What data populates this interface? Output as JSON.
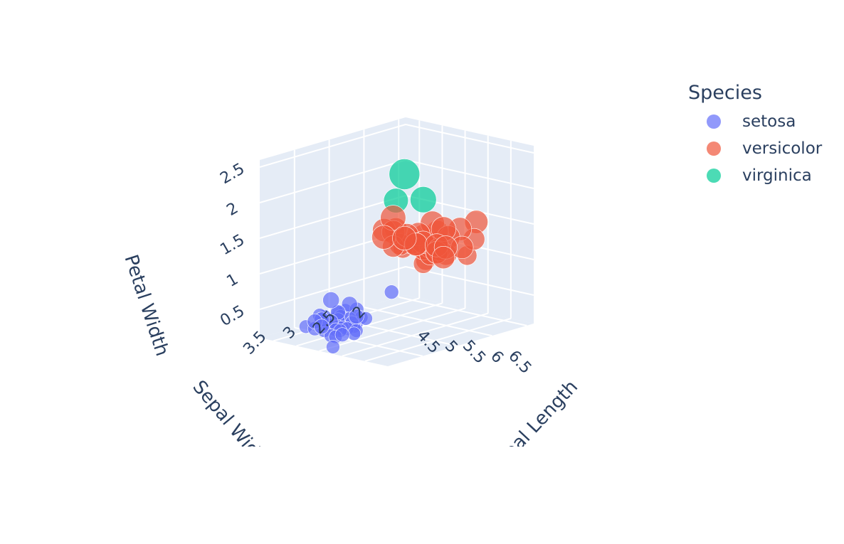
{
  "chart_data": {
    "type": "scatter3d",
    "x_axis": {
      "label": "Sepal Length",
      "ticks": [
        "4.5",
        "5",
        "5.5",
        "6",
        "6.5"
      ],
      "range": [
        4.2,
        7.0
      ]
    },
    "y_axis": {
      "label": "Sepal Width",
      "ticks": [
        "2",
        "2.5",
        "3",
        "3.5"
      ],
      "range": [
        1.9,
        4.0
      ]
    },
    "z_axis": {
      "label": "Petal Width",
      "ticks": [
        "0.5",
        "1",
        "1.5",
        "2",
        "2.5"
      ],
      "range": [
        0.1,
        2.6
      ]
    },
    "legend": {
      "title": "Species",
      "placement": "right"
    },
    "series": [
      {
        "name": "setosa",
        "color": "#636efa",
        "points": [
          [
            5.1,
            3.5,
            0.2
          ],
          [
            4.9,
            3.0,
            0.2
          ],
          [
            4.7,
            3.2,
            0.2
          ],
          [
            4.6,
            3.1,
            0.2
          ],
          [
            5.0,
            3.6,
            0.2
          ],
          [
            5.4,
            3.9,
            0.4
          ],
          [
            4.6,
            3.4,
            0.3
          ],
          [
            5.0,
            3.4,
            0.2
          ],
          [
            4.4,
            2.9,
            0.2
          ],
          [
            4.9,
            3.1,
            0.1
          ],
          [
            5.4,
            3.7,
            0.2
          ],
          [
            4.8,
            3.4,
            0.2
          ],
          [
            4.8,
            3.0,
            0.1
          ],
          [
            4.3,
            3.0,
            0.1
          ],
          [
            5.8,
            4.0,
            0.2
          ],
          [
            5.7,
            3.8,
            0.3
          ],
          [
            5.1,
            3.8,
            0.3
          ],
          [
            5.4,
            3.4,
            0.2
          ],
          [
            5.1,
            3.7,
            0.4
          ],
          [
            4.6,
            3.6,
            0.2
          ],
          [
            5.1,
            3.3,
            0.5
          ],
          [
            4.8,
            3.4,
            0.2
          ],
          [
            5.0,
            3.0,
            0.2
          ],
          [
            5.0,
            3.4,
            0.4
          ],
          [
            5.2,
            3.5,
            0.2
          ],
          [
            5.2,
            3.4,
            0.2
          ],
          [
            4.7,
            3.2,
            0.2
          ],
          [
            4.8,
            3.1,
            0.2
          ],
          [
            5.4,
            3.4,
            0.4
          ],
          [
            5.0,
            3.2,
            0.2
          ],
          [
            5.5,
            3.5,
            0.2
          ],
          [
            4.4,
            3.0,
            0.2
          ],
          [
            5.1,
            3.4,
            0.2
          ],
          [
            5.0,
            3.5,
            0.3
          ],
          [
            4.5,
            2.3,
            0.3
          ],
          [
            4.4,
            3.2,
            0.2
          ],
          [
            5.0,
            3.5,
            0.6
          ],
          [
            5.1,
            3.8,
            0.4
          ],
          [
            4.8,
            3.0,
            0.3
          ],
          [
            5.3,
            3.7,
            0.2
          ]
        ]
      },
      {
        "name": "versicolor",
        "color": "#ef553b",
        "points": [
          [
            7.0,
            3.2,
            1.4
          ],
          [
            6.4,
            3.2,
            1.5
          ],
          [
            6.9,
            3.1,
            1.5
          ],
          [
            5.5,
            2.3,
            1.3
          ],
          [
            6.5,
            2.8,
            1.5
          ],
          [
            5.7,
            2.8,
            1.3
          ],
          [
            6.3,
            3.3,
            1.6
          ],
          [
            4.9,
            2.4,
            1.0
          ],
          [
            6.6,
            2.9,
            1.3
          ],
          [
            5.2,
            2.7,
            1.4
          ],
          [
            5.0,
            2.0,
            1.0
          ],
          [
            5.9,
            3.0,
            1.5
          ],
          [
            6.0,
            2.2,
            1.0
          ],
          [
            6.1,
            2.9,
            1.4
          ],
          [
            5.6,
            2.9,
            1.3
          ],
          [
            6.7,
            3.1,
            1.4
          ],
          [
            5.6,
            3.0,
            1.5
          ],
          [
            5.8,
            2.7,
            1.0
          ],
          [
            6.2,
            2.2,
            1.5
          ],
          [
            5.6,
            2.5,
            1.1
          ],
          [
            5.9,
            3.2,
            1.8
          ],
          [
            6.1,
            2.8,
            1.3
          ],
          [
            6.3,
            2.5,
            1.5
          ],
          [
            6.1,
            2.8,
            1.2
          ],
          [
            6.4,
            2.9,
            1.3
          ],
          [
            6.6,
            3.0,
            1.4
          ],
          [
            6.8,
            2.8,
            1.4
          ],
          [
            6.7,
            3.0,
            1.7
          ],
          [
            6.0,
            2.9,
            1.5
          ],
          [
            5.7,
            2.6,
            1.0
          ],
          [
            5.5,
            2.4,
            1.1
          ],
          [
            5.8,
            2.7,
            1.2
          ],
          [
            6.0,
            2.7,
            1.6
          ],
          [
            5.4,
            3.0,
            1.5
          ],
          [
            6.0,
            3.4,
            1.6
          ],
          [
            6.7,
            3.1,
            1.5
          ],
          [
            6.3,
            2.3,
            1.3
          ],
          [
            5.6,
            3.0,
            1.3
          ],
          [
            5.5,
            2.5,
            1.3
          ],
          [
            6.1,
            3.0,
            1.4
          ]
        ]
      },
      {
        "name": "virginica",
        "color": "#00cc96",
        "points": [
          [
            6.3,
            3.3,
            2.5
          ],
          [
            5.8,
            2.7,
            1.9
          ],
          [
            4.9,
            2.5,
            1.7
          ]
        ]
      }
    ]
  }
}
